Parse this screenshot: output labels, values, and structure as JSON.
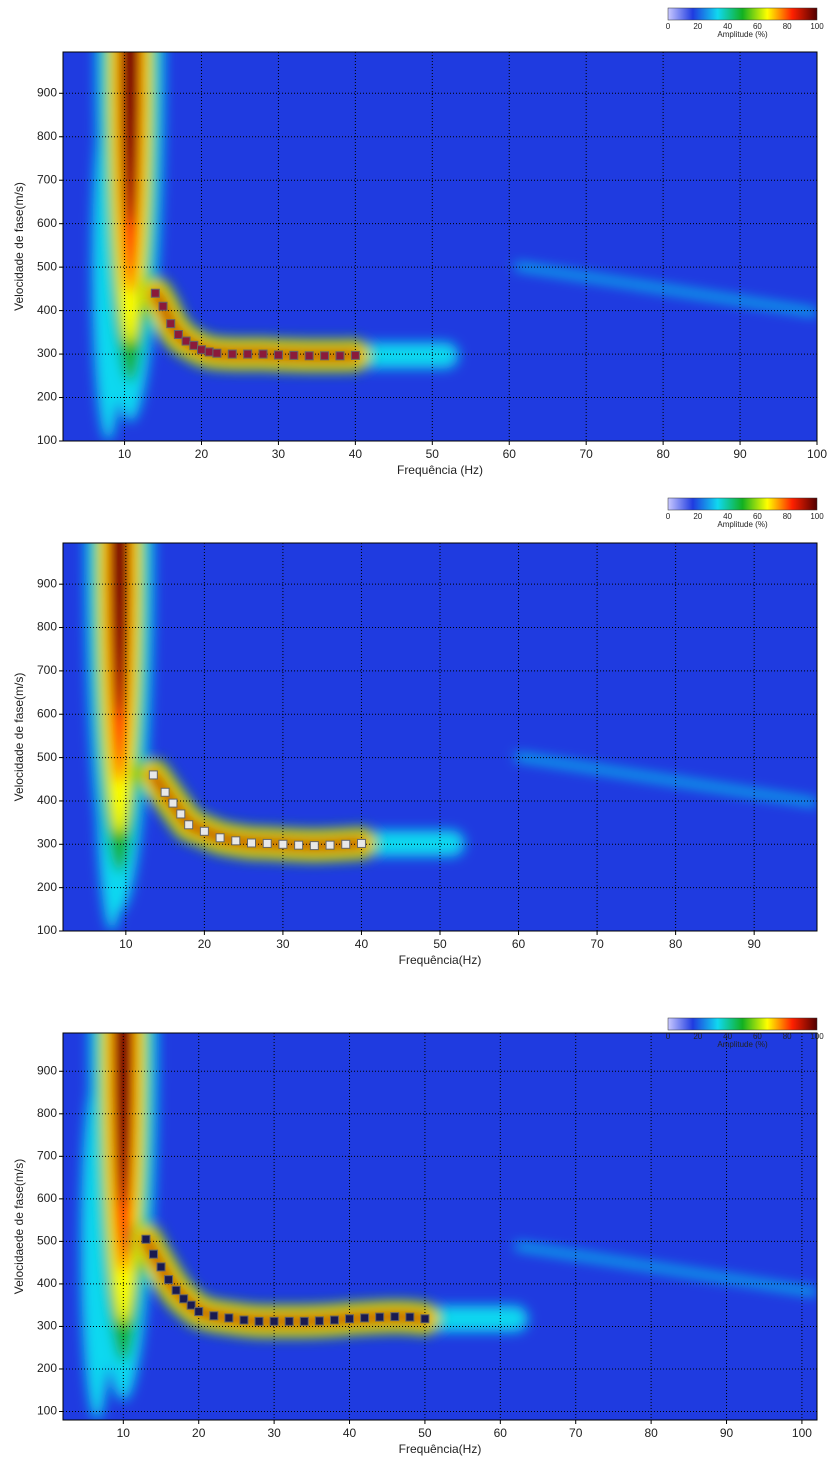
{
  "chart_data": [
    {
      "type": "scatter",
      "x_label": "Frequência (Hz)",
      "y_label": "Velocidade de fase(m/s)",
      "colorbar": {
        "label": "Amplitude (%)",
        "ticks": [
          0,
          20,
          40,
          60,
          80,
          100
        ],
        "colormap": [
          "#c8c8ff",
          "#1f3be0",
          "#10d8f0",
          "#12b020",
          "#ffff00",
          "#ff2000",
          "#500000"
        ]
      },
      "xlim": [
        2,
        100
      ],
      "ylim": [
        100,
        995
      ],
      "xticks": [
        10,
        20,
        30,
        40,
        50,
        60,
        70,
        80,
        90,
        100
      ],
      "yticks": [
        100,
        200,
        300,
        400,
        500,
        600,
        700,
        800,
        900
      ],
      "grid": true,
      "marker_color": "#8b1a3a",
      "x": [
        14,
        15,
        16,
        17,
        18,
        19,
        20,
        21,
        22,
        24,
        26,
        28,
        30,
        32,
        34,
        36,
        38,
        40
      ],
      "values": [
        440,
        410,
        370,
        345,
        330,
        320,
        310,
        305,
        302,
        300,
        300,
        300,
        298,
        297,
        296,
        296,
        296,
        297
      ]
    },
    {
      "type": "scatter",
      "x_label": "Frequência(Hz)",
      "y_label": "Velocidade de fase(m/s)",
      "colorbar": {
        "label": "Amplitude (%)",
        "ticks": [
          0,
          20,
          40,
          60,
          80,
          100
        ],
        "colormap": [
          "#c8c8ff",
          "#1f3be0",
          "#10d8f0",
          "#12b020",
          "#ffff00",
          "#ff2000",
          "#500000"
        ]
      },
      "xlim": [
        2,
        98
      ],
      "ylim": [
        100,
        995
      ],
      "xticks": [
        10,
        20,
        30,
        40,
        50,
        60,
        70,
        80,
        90
      ],
      "yticks": [
        100,
        200,
        300,
        400,
        500,
        600,
        700,
        800,
        900
      ],
      "grid": true,
      "marker_color": "#e8e8e8",
      "x": [
        13.5,
        15,
        16,
        17,
        18,
        20,
        22,
        24,
        26,
        28,
        30,
        32,
        34,
        36,
        38,
        40
      ],
      "values": [
        460,
        420,
        395,
        370,
        345,
        330,
        315,
        308,
        303,
        302,
        300,
        298,
        297,
        298,
        300,
        302
      ]
    },
    {
      "type": "scatter",
      "x_label": "Frequência(Hz)",
      "y_label": "Velocidaede de fase(m/s)",
      "colorbar": {
        "label": "Amplitude (%)",
        "ticks": [
          0,
          20,
          40,
          60,
          80,
          100
        ],
        "colormap": [
          "#c8c8ff",
          "#1f3be0",
          "#10d8f0",
          "#12b020",
          "#ffff00",
          "#ff2000",
          "#500000"
        ]
      },
      "xlim": [
        2,
        102
      ],
      "ylim": [
        80,
        990
      ],
      "xticks": [
        10,
        20,
        30,
        40,
        50,
        60,
        70,
        80,
        90,
        100
      ],
      "yticks": [
        100,
        200,
        300,
        400,
        500,
        600,
        700,
        800,
        900
      ],
      "grid": true,
      "marker_color": "#1a1a50",
      "x": [
        13,
        14,
        15,
        16,
        17,
        18,
        19,
        20,
        22,
        24,
        26,
        28,
        30,
        32,
        34,
        36,
        38,
        40,
        42,
        44,
        46,
        48,
        50
      ],
      "values": [
        505,
        470,
        440,
        410,
        385,
        365,
        350,
        335,
        325,
        320,
        315,
        312,
        312,
        312,
        312,
        313,
        315,
        318,
        320,
        322,
        323,
        322,
        318
      ]
    }
  ]
}
